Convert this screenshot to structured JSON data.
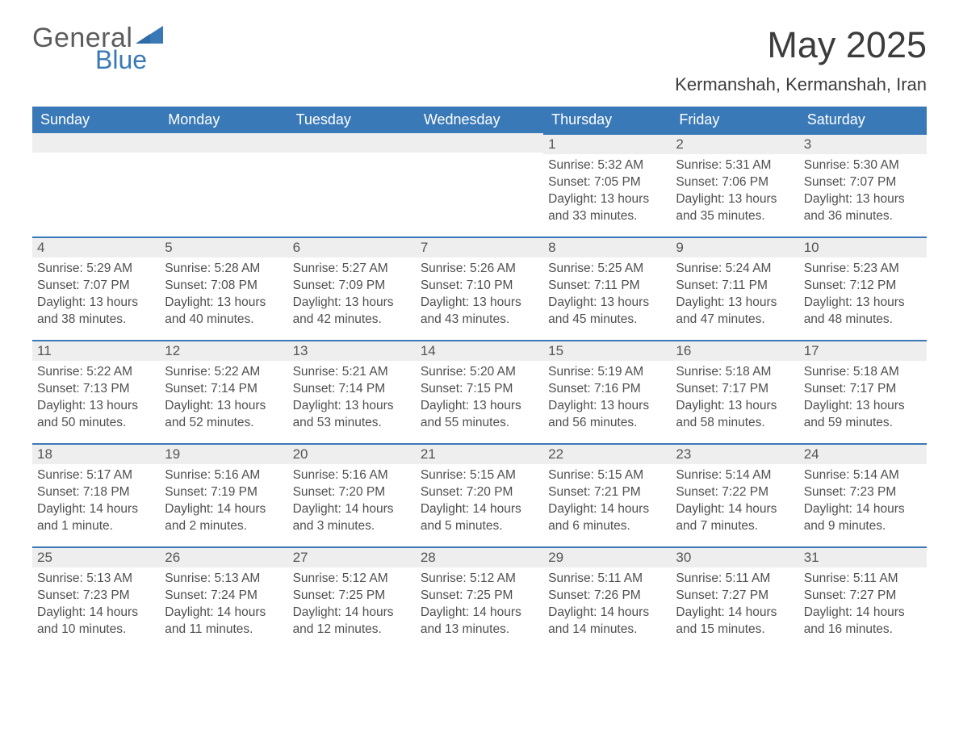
{
  "logo": {
    "word1": "General",
    "word2": "Blue",
    "accent_color": "#3a79b7"
  },
  "title": "May 2025",
  "location": "Kermanshah, Kermanshah, Iran",
  "weekday_labels": [
    "Sunday",
    "Monday",
    "Tuesday",
    "Wednesday",
    "Thursday",
    "Friday",
    "Saturday"
  ],
  "colors": {
    "header_bg": "#3a79b7",
    "header_text": "#ffffff",
    "daynum_bg": "#eeeeee",
    "rule": "#3a79b7",
    "body_text": "#4f4f4f",
    "page_bg": "#ffffff"
  },
  "typography": {
    "title_fontsize": 45,
    "location_fontsize": 22,
    "weekday_fontsize": 18,
    "daynum_fontsize": 17,
    "cell_fontsize": 15.5,
    "font_family": "Segoe UI"
  },
  "calendar": {
    "type": "table",
    "columns": 7,
    "rows": 5,
    "leading_blanks": 4,
    "days": [
      {
        "n": "1",
        "sunrise": "5:32 AM",
        "sunset": "7:05 PM",
        "daylight": "13 hours and 33 minutes."
      },
      {
        "n": "2",
        "sunrise": "5:31 AM",
        "sunset": "7:06 PM",
        "daylight": "13 hours and 35 minutes."
      },
      {
        "n": "3",
        "sunrise": "5:30 AM",
        "sunset": "7:07 PM",
        "daylight": "13 hours and 36 minutes."
      },
      {
        "n": "4",
        "sunrise": "5:29 AM",
        "sunset": "7:07 PM",
        "daylight": "13 hours and 38 minutes."
      },
      {
        "n": "5",
        "sunrise": "5:28 AM",
        "sunset": "7:08 PM",
        "daylight": "13 hours and 40 minutes."
      },
      {
        "n": "6",
        "sunrise": "5:27 AM",
        "sunset": "7:09 PM",
        "daylight": "13 hours and 42 minutes."
      },
      {
        "n": "7",
        "sunrise": "5:26 AM",
        "sunset": "7:10 PM",
        "daylight": "13 hours and 43 minutes."
      },
      {
        "n": "8",
        "sunrise": "5:25 AM",
        "sunset": "7:11 PM",
        "daylight": "13 hours and 45 minutes."
      },
      {
        "n": "9",
        "sunrise": "5:24 AM",
        "sunset": "7:11 PM",
        "daylight": "13 hours and 47 minutes."
      },
      {
        "n": "10",
        "sunrise": "5:23 AM",
        "sunset": "7:12 PM",
        "daylight": "13 hours and 48 minutes."
      },
      {
        "n": "11",
        "sunrise": "5:22 AM",
        "sunset": "7:13 PM",
        "daylight": "13 hours and 50 minutes."
      },
      {
        "n": "12",
        "sunrise": "5:22 AM",
        "sunset": "7:14 PM",
        "daylight": "13 hours and 52 minutes."
      },
      {
        "n": "13",
        "sunrise": "5:21 AM",
        "sunset": "7:14 PM",
        "daylight": "13 hours and 53 minutes."
      },
      {
        "n": "14",
        "sunrise": "5:20 AM",
        "sunset": "7:15 PM",
        "daylight": "13 hours and 55 minutes."
      },
      {
        "n": "15",
        "sunrise": "5:19 AM",
        "sunset": "7:16 PM",
        "daylight": "13 hours and 56 minutes."
      },
      {
        "n": "16",
        "sunrise": "5:18 AM",
        "sunset": "7:17 PM",
        "daylight": "13 hours and 58 minutes."
      },
      {
        "n": "17",
        "sunrise": "5:18 AM",
        "sunset": "7:17 PM",
        "daylight": "13 hours and 59 minutes."
      },
      {
        "n": "18",
        "sunrise": "5:17 AM",
        "sunset": "7:18 PM",
        "daylight": "14 hours and 1 minute."
      },
      {
        "n": "19",
        "sunrise": "5:16 AM",
        "sunset": "7:19 PM",
        "daylight": "14 hours and 2 minutes."
      },
      {
        "n": "20",
        "sunrise": "5:16 AM",
        "sunset": "7:20 PM",
        "daylight": "14 hours and 3 minutes."
      },
      {
        "n": "21",
        "sunrise": "5:15 AM",
        "sunset": "7:20 PM",
        "daylight": "14 hours and 5 minutes."
      },
      {
        "n": "22",
        "sunrise": "5:15 AM",
        "sunset": "7:21 PM",
        "daylight": "14 hours and 6 minutes."
      },
      {
        "n": "23",
        "sunrise": "5:14 AM",
        "sunset": "7:22 PM",
        "daylight": "14 hours and 7 minutes."
      },
      {
        "n": "24",
        "sunrise": "5:14 AM",
        "sunset": "7:23 PM",
        "daylight": "14 hours and 9 minutes."
      },
      {
        "n": "25",
        "sunrise": "5:13 AM",
        "sunset": "7:23 PM",
        "daylight": "14 hours and 10 minutes."
      },
      {
        "n": "26",
        "sunrise": "5:13 AM",
        "sunset": "7:24 PM",
        "daylight": "14 hours and 11 minutes."
      },
      {
        "n": "27",
        "sunrise": "5:12 AM",
        "sunset": "7:25 PM",
        "daylight": "14 hours and 12 minutes."
      },
      {
        "n": "28",
        "sunrise": "5:12 AM",
        "sunset": "7:25 PM",
        "daylight": "14 hours and 13 minutes."
      },
      {
        "n": "29",
        "sunrise": "5:11 AM",
        "sunset": "7:26 PM",
        "daylight": "14 hours and 14 minutes."
      },
      {
        "n": "30",
        "sunrise": "5:11 AM",
        "sunset": "7:27 PM",
        "daylight": "14 hours and 15 minutes."
      },
      {
        "n": "31",
        "sunrise": "5:11 AM",
        "sunset": "7:27 PM",
        "daylight": "14 hours and 16 minutes."
      }
    ],
    "labels": {
      "sunrise": "Sunrise:",
      "sunset": "Sunset:",
      "daylight": "Daylight:"
    }
  }
}
